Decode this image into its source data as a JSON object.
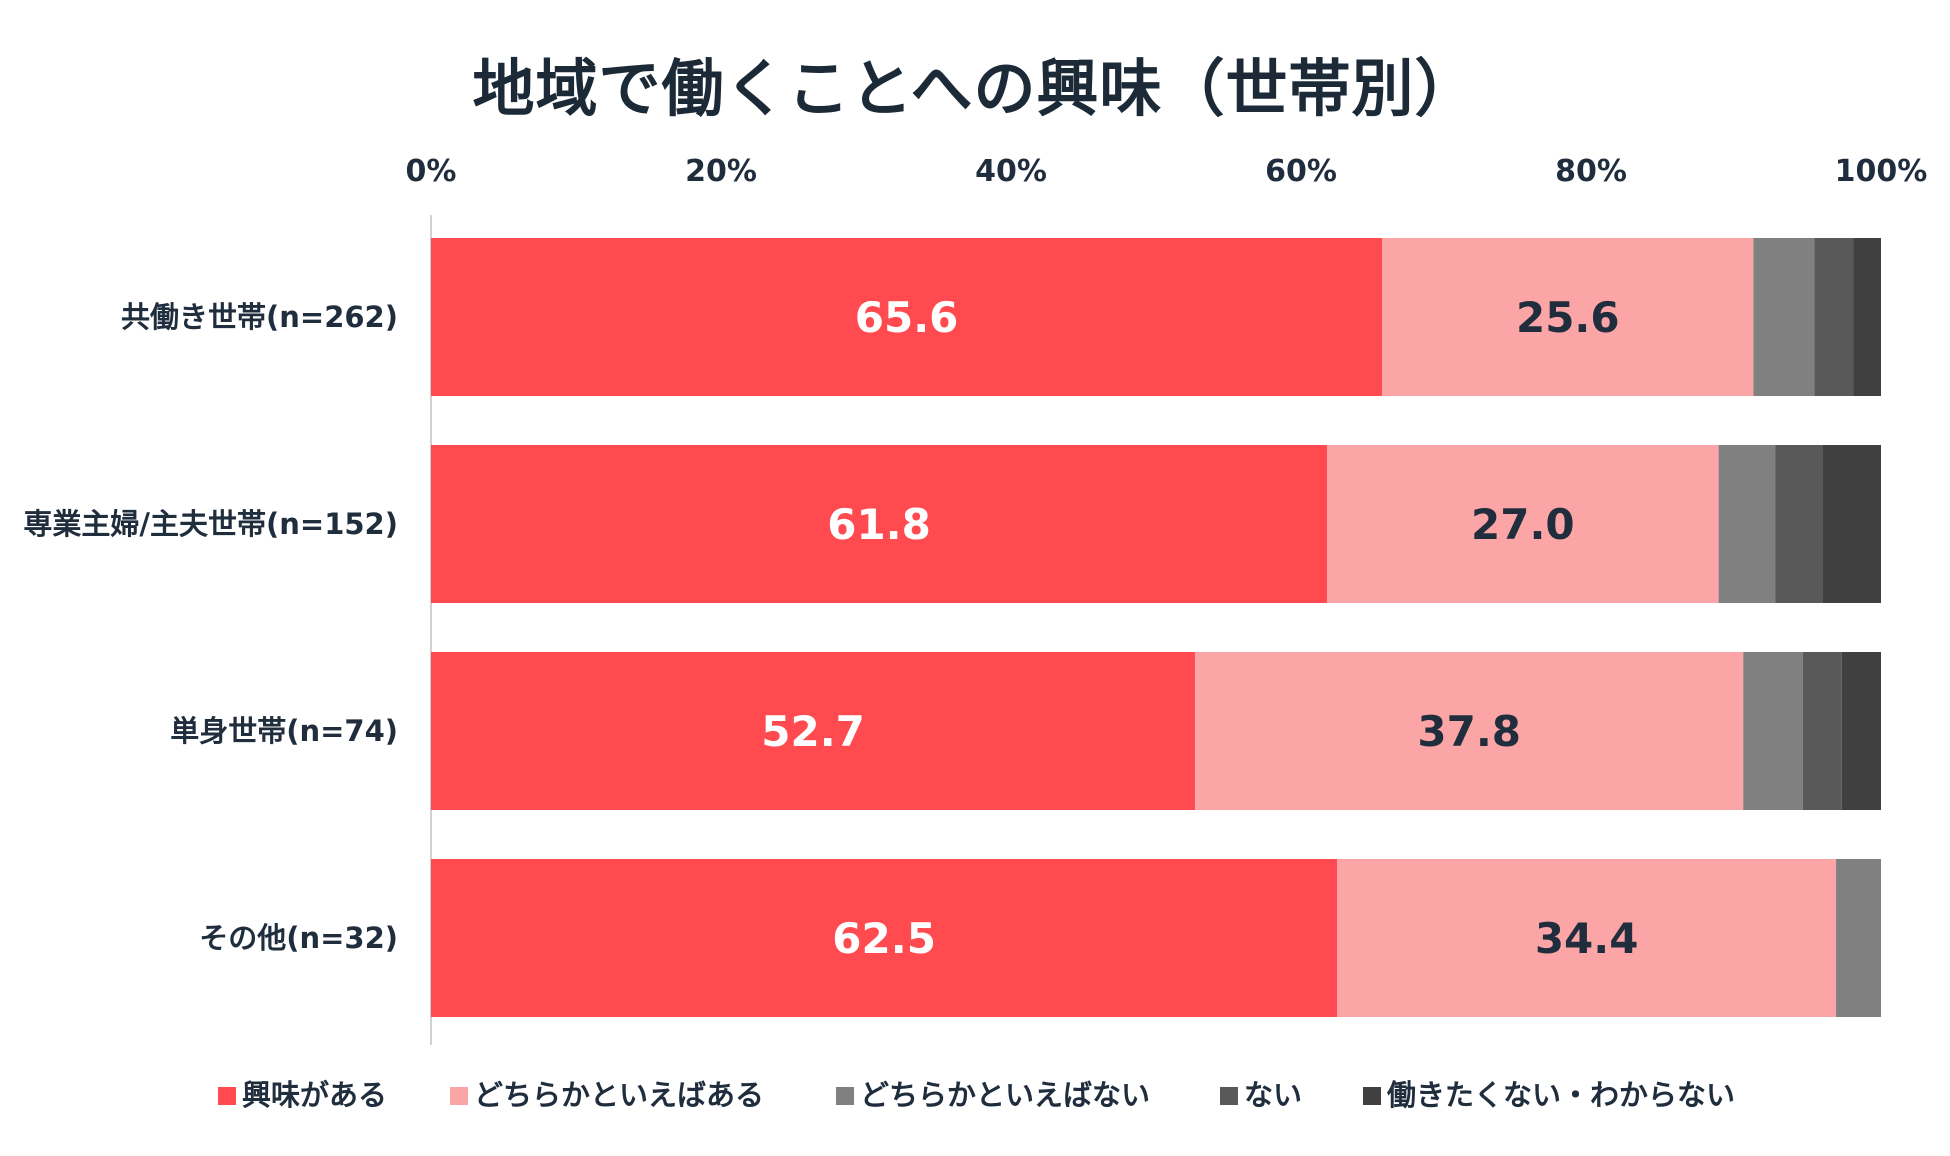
{
  "chart_data": {
    "type": "bar",
    "orientation": "horizontal",
    "stacked": true,
    "title": "地域で働くことへの興味（世帯別）",
    "xlim": [
      0,
      100
    ],
    "x_ticks": [
      "0%",
      "20%",
      "40%",
      "60%",
      "80%",
      "100%"
    ],
    "categories": [
      "共働き世帯(n=262)",
      "専業主婦/主夫世帯(n=152)",
      "単身世帯(n=74)",
      "その他(n=32)"
    ],
    "series": [
      {
        "name": "興味がある",
        "color": "#ff4b4f",
        "label_color": "#ffffff",
        "values": [
          65.6,
          61.8,
          52.7,
          62.5
        ],
        "labels": [
          "65.6",
          "61.8",
          "52.7",
          "62.5"
        ]
      },
      {
        "name": "どちらかといえばある",
        "color": "#fca5a6",
        "label_color": "#1f2d3d",
        "values": [
          25.6,
          27.0,
          37.8,
          34.4
        ],
        "labels": [
          "25.6",
          "27.0",
          "37.8",
          "34.4"
        ]
      },
      {
        "name": "どちらかといえばない",
        "color": "#808080",
        "label_color": "#1f2d3d",
        "values": [
          4.2,
          3.9,
          4.1,
          3.1
        ],
        "labels": [
          "",
          "",
          "",
          ""
        ]
      },
      {
        "name": "ない",
        "color": "#595959",
        "label_color": "#ffffff",
        "values": [
          2.7,
          3.3,
          2.7,
          0
        ],
        "labels": [
          "",
          "",
          "",
          ""
        ]
      },
      {
        "name": "働きたくない・わからない",
        "color": "#404040",
        "label_color": "#ffffff",
        "values": [
          1.9,
          4.0,
          2.7,
          0
        ],
        "labels": [
          "",
          "",
          "",
          ""
        ]
      }
    ],
    "legend_position": "bottom",
    "grid": false
  }
}
